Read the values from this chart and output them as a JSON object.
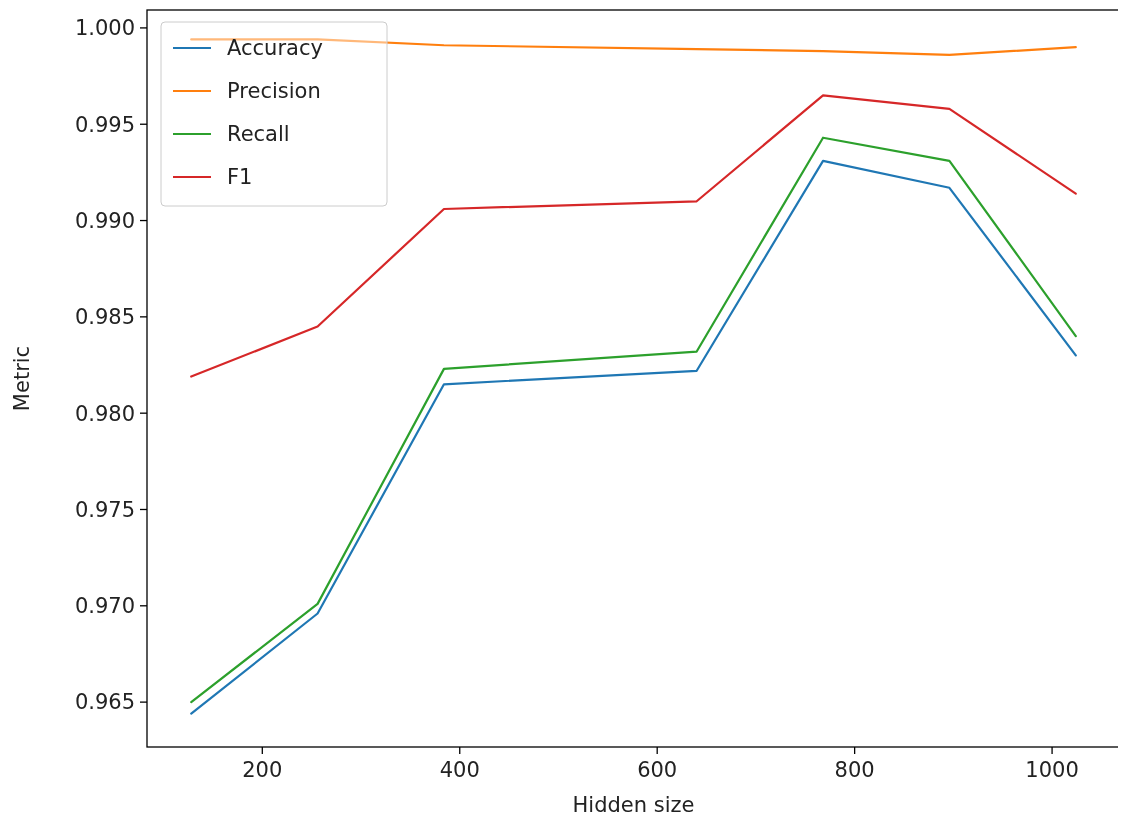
{
  "chart_data": {
    "type": "line",
    "xlabel": "Hidden size",
    "ylabel": "Metric",
    "x": [
      128,
      256,
      384,
      640,
      768,
      896,
      1024
    ],
    "series": [
      {
        "name": "Accuracy",
        "color": "#1f77b4",
        "values": [
          0.9644,
          0.9696,
          0.9815,
          0.9822,
          0.9931,
          0.9917,
          0.983
        ]
      },
      {
        "name": "Precision",
        "color": "#ff7f0e",
        "values": [
          0.9994,
          0.9994,
          0.9991,
          0.9989,
          0.9988,
          0.9986,
          0.999
        ]
      },
      {
        "name": "Recall",
        "color": "#2ca02c",
        "values": [
          0.965,
          0.9701,
          0.9823,
          0.9832,
          0.9943,
          0.9931,
          0.984
        ]
      },
      {
        "name": "F1",
        "color": "#d62728",
        "values": [
          0.9819,
          0.9845,
          0.9906,
          0.991,
          0.9965,
          0.9958,
          0.9914
        ]
      }
    ],
    "xlim": [
      83.2,
      1068.8
    ],
    "xticks": [
      200,
      400,
      600,
      800,
      1000
    ],
    "ylim": [
      0.96267,
      1.00093
    ],
    "yticks": [
      {
        "value": 0.965,
        "label": "0.965"
      },
      {
        "value": 0.97,
        "label": "0.970"
      },
      {
        "value": 0.975,
        "label": "0.975"
      },
      {
        "value": 0.98,
        "label": "0.980"
      },
      {
        "value": 0.985,
        "label": "0.985"
      },
      {
        "value": 0.99,
        "label": "0.990"
      },
      {
        "value": 0.995,
        "label": "0.995"
      },
      {
        "value": 1,
        "label": "1.000"
      }
    ],
    "legend": "top left",
    "grid": false
  }
}
